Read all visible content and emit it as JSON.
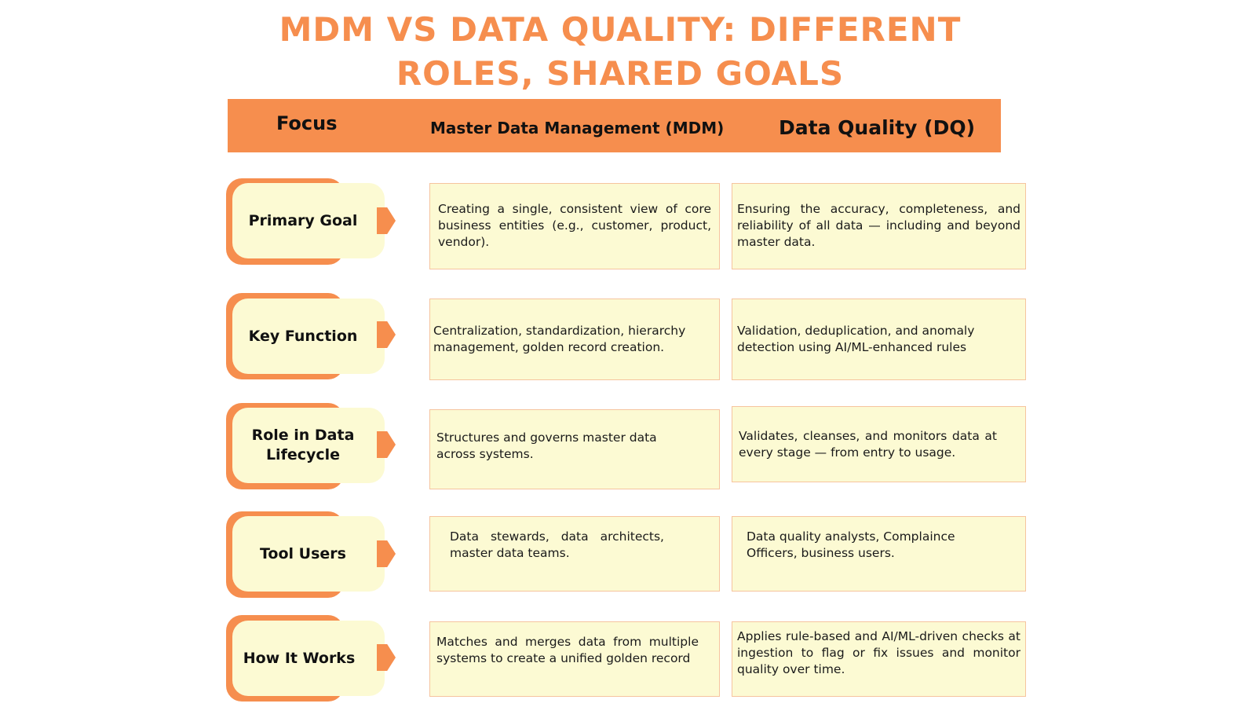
{
  "title": {
    "line1": "MDM VS DATA QUALITY: DIFFERENT",
    "line2": "ROLES, SHARED GOALS"
  },
  "header": {
    "focus": "Focus",
    "mdm": "Master Data Management (MDM)",
    "dq": "Data Quality (DQ)"
  },
  "colors": {
    "accent": "#F68E4E",
    "cell_background": "#FCFAD3",
    "cell_border": "#F6C49E"
  },
  "rows": [
    {
      "label": "Primary Goal",
      "mdm": "Creating a single, consistent view of core business entities (e.g., customer, product, vendor).",
      "dq": "Ensuring the accuracy, completeness, and reliability of all data — including and beyond master data."
    },
    {
      "label": "Key Function",
      "mdm": "Centralization, standardization, hierarchy management, golden record creation.",
      "dq": "Validation, deduplication, and anomaly detection using AI/ML-enhanced rules"
    },
    {
      "label": "Role in Data Lifecycle",
      "mdm": "Structures and governs master data across systems.",
      "dq": "Validates, cleanses, and monitors data at every stage — from entry to usage."
    },
    {
      "label": "Tool Users",
      "mdm": "Data stewards, data architects, master data teams.",
      "dq": "Data quality analysts, Complaince Officers, business users."
    },
    {
      "label": "How It Works",
      "mdm": "Matches and merges data from multiple systems to create a unified golden record",
      "dq": "Applies rule-based and AI/ML-driven checks at ingestion to flag or fix issues and monitor quality over time."
    }
  ]
}
